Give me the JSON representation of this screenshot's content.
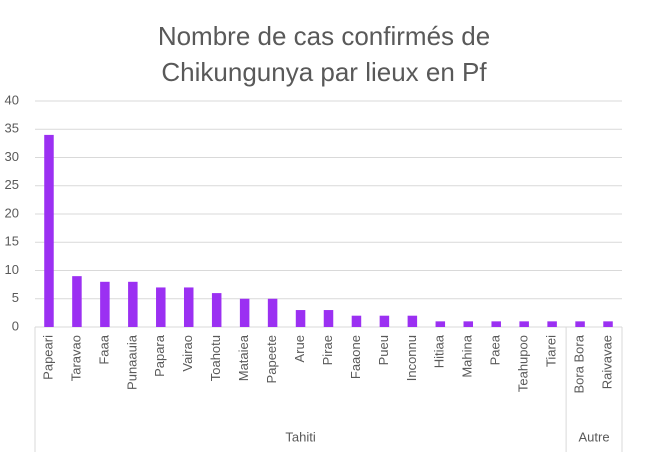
{
  "chart_data": {
    "type": "bar",
    "title": [
      "Nombre de cas confirmés de",
      "Chikungunya par lieux en Pf"
    ],
    "groups": [
      {
        "name": "Tahiti",
        "categories": [
          "Papeari",
          "Taravao",
          "Faaa",
          "Punaauia",
          "Papara",
          "Vairao",
          "Toahotu",
          "Mataiea",
          "Papeete",
          "Arue",
          "Pirae",
          "Faaone",
          "Pueu",
          "Inconnu",
          "Hitiaa",
          "Mahina",
          "Paea",
          "Teahupoo",
          "Tiarei"
        ],
        "values": [
          34,
          9,
          8,
          8,
          7,
          7,
          6,
          5,
          5,
          3,
          3,
          2,
          2,
          2,
          1,
          1,
          1,
          1,
          1
        ]
      },
      {
        "name": "Autre",
        "categories": [
          "Bora Bora",
          "Raivavae"
        ],
        "values": [
          1,
          1
        ]
      }
    ],
    "color": "#9b30f2",
    "ylim": [
      0,
      40
    ],
    "yticks": [
      0,
      5,
      10,
      15,
      20,
      25,
      30,
      35,
      40
    ],
    "grid": true
  }
}
